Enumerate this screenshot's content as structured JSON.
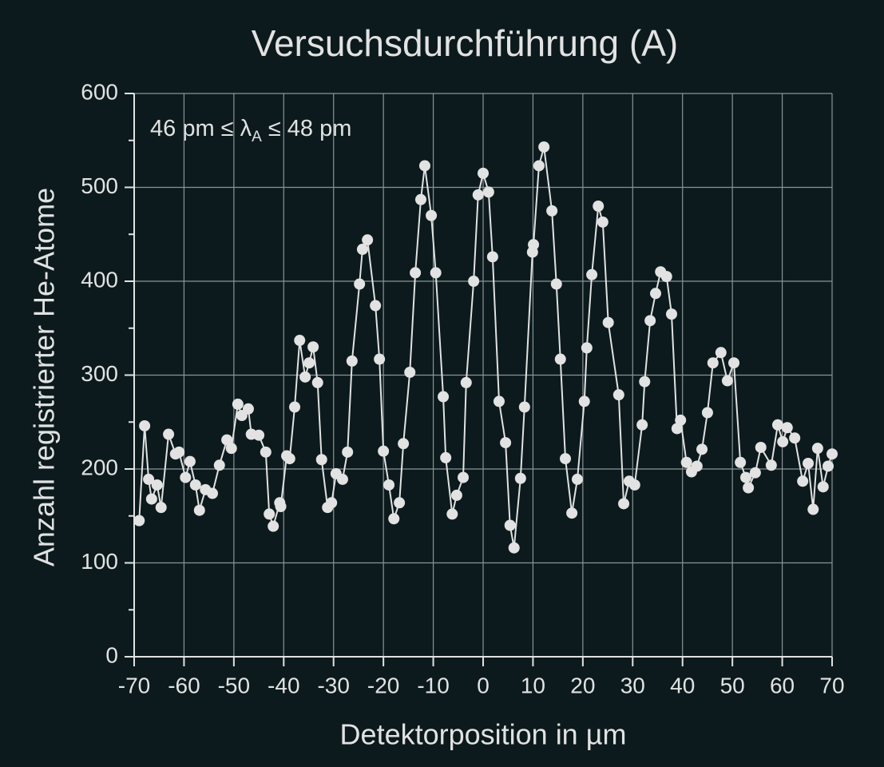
{
  "chart_data": {
    "type": "line",
    "title": "Versuchsdurchführung (A)",
    "annotation": {
      "pre": "46 pm ≤ λ",
      "sub": "A",
      "post": "≤ 48 pm"
    },
    "x_label": "Detektorposition in µm",
    "y_label": "Anzahl registrierter He-Atome",
    "color": "#e2e2e2",
    "grid": true,
    "xlim": [
      -70,
      70
    ],
    "xticks": [
      -70,
      -60,
      -50,
      -40,
      -30,
      -20,
      -10,
      0,
      10,
      20,
      30,
      40,
      50,
      60,
      70
    ],
    "ylim": [
      0,
      600
    ],
    "yticks": [
      0,
      100,
      200,
      300,
      400,
      500,
      600
    ],
    "yminorticks": [
      50,
      150,
      250,
      350,
      450,
      550
    ],
    "x": [
      -69.0,
      -67.9,
      -67.1,
      -66.5,
      -65.4,
      -64.6,
      -63.1,
      -61.7,
      -61.0,
      -59.7,
      -58.8,
      -57.7,
      -56.9,
      -55.7,
      -54.3,
      -52.9,
      -51.4,
      -50.5,
      -49.2,
      -48.4,
      -47.1,
      -46.5,
      -45.0,
      -43.6,
      -42.9,
      -42.1,
      -40.8,
      -40.6,
      -39.4,
      -38.8,
      -37.8,
      -36.8,
      -35.7,
      -34.9,
      -34.1,
      -33.2,
      -32.4,
      -31.2,
      -30.4,
      -29.5,
      -28.2,
      -27.2,
      -26.3,
      -24.8,
      -24.2,
      -23.2,
      -21.6,
      -20.8,
      -20.0,
      -18.9,
      -17.9,
      -16.8,
      -16.0,
      -14.7,
      -13.6,
      -12.5,
      -11.7,
      -10.4,
      -9.5,
      -8.0,
      -7.5,
      -6.2,
      -5.3,
      -4.0,
      -3.4,
      -1.9,
      -1.0,
      0.0,
      1.1,
      1.9,
      3.2,
      4.5,
      5.4,
      6.2,
      7.5,
      8.3,
      9.9,
      10.1,
      11.2,
      12.2,
      13.8,
      14.7,
      15.5,
      16.5,
      17.8,
      18.9,
      20.3,
      20.8,
      21.8,
      23.1,
      24.0,
      25.1,
      27.2,
      28.2,
      29.3,
      30.4,
      31.9,
      32.4,
      33.5,
      34.6,
      35.6,
      36.8,
      37.8,
      38.9,
      39.6,
      40.8,
      41.8,
      42.9,
      43.9,
      45.0,
      46.1,
      47.7,
      49.0,
      50.3,
      51.6,
      52.7,
      53.2,
      54.6,
      55.7,
      57.8,
      59.1,
      60.1,
      61.0,
      62.5,
      64.1,
      65.2,
      66.2,
      67.1,
      68.2,
      69.2,
      70.0
    ],
    "values": [
      145,
      246,
      189,
      168,
      183,
      159,
      237,
      216,
      218,
      191,
      208,
      183,
      156,
      178,
      174,
      204,
      231,
      222,
      269,
      257,
      264,
      237,
      236,
      218,
      152,
      139,
      164,
      160,
      214,
      211,
      266,
      337,
      298,
      313,
      330,
      292,
      210,
      159,
      164,
      195,
      189,
      218,
      315,
      397,
      434,
      444,
      374,
      317,
      219,
      183,
      147,
      164,
      227,
      303,
      409,
      487,
      523,
      470,
      409,
      277,
      212,
      152,
      172,
      191,
      292,
      400,
      492,
      515,
      495,
      426,
      272,
      228,
      140,
      116,
      190,
      266,
      431,
      439,
      523,
      543,
      475,
      397,
      317,
      211,
      153,
      189,
      272,
      329,
      407,
      480,
      463,
      356,
      279,
      163,
      187,
      183,
      247,
      293,
      358,
      387,
      410,
      405,
      365,
      243,
      252,
      207,
      197,
      203,
      221,
      260,
      313,
      324,
      294,
      313,
      207,
      191,
      180,
      196,
      223,
      204,
      247,
      229,
      244,
      233,
      187,
      206,
      157,
      222,
      181,
      203,
      216
    ]
  }
}
